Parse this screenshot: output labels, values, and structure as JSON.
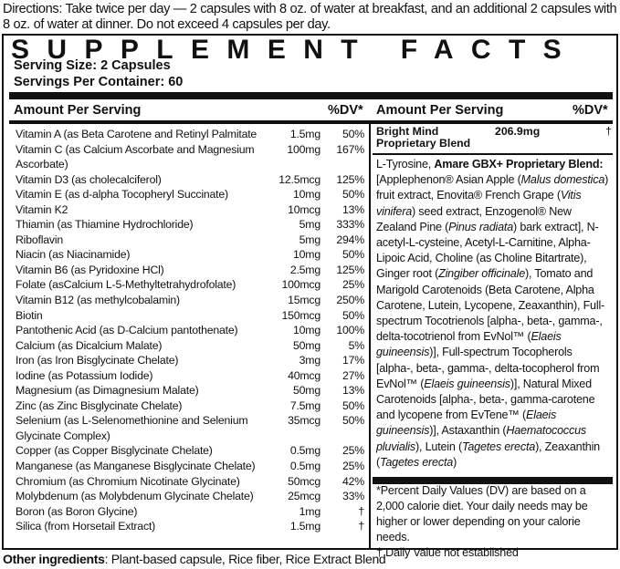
{
  "directions": "Directions: Take twice per day — 2 capsules with 8 oz. of water at breakfast, and an additional 2 capsules with 8 oz. of water at dinner. Do not exceed 4 capsules per day.",
  "title": "SUPPLEMENT FACTS",
  "serving_size": "Serving Size: 2 Capsules",
  "servings_per_container": "Servings Per Container: 60",
  "header": {
    "amount_label": "Amount Per Serving",
    "dv_label": "%DV*"
  },
  "nutrients": [
    {
      "name": "Vitamin A (as Beta Carotene and Retinyl Palmitate",
      "amount": "1.5mg",
      "dv": "50%"
    },
    {
      "name": "Vitamin C (as Calcium Ascorbate and Magnesium Ascorbate)",
      "amount": "100mg",
      "dv": "167%"
    },
    {
      "name": "Vitamin D3 (as cholecalciferol)",
      "amount": "12.5mcg",
      "dv": "125%"
    },
    {
      "name": "Vitamin E (as d-alpha Tocopheryl Succinate)",
      "amount": "10mg",
      "dv": "50%"
    },
    {
      "name": "Vitamin K2",
      "amount": "10mcg",
      "dv": "13%"
    },
    {
      "name": "Thiamin (as Thiamine Hydrochloride)",
      "amount": "5mg",
      "dv": "333%"
    },
    {
      "name": "Riboflavin",
      "amount": "5mg",
      "dv": "294%"
    },
    {
      "name": "Niacin (as Niacinamide)",
      "amount": "10mg",
      "dv": "50%"
    },
    {
      "name": "Vitamin B6 (as Pyridoxine HCl)",
      "amount": "2.5mg",
      "dv": "125%"
    },
    {
      "name": "Folate (asCalcium L-5-Methyltetrahydrofolate)",
      "amount": "100mcg",
      "dv": "25%"
    },
    {
      "name": "Vitamin B12 (as methylcobalamin)",
      "amount": "15mcg",
      "dv": "250%"
    },
    {
      "name": "Biotin",
      "amount": "150mcg",
      "dv": "50%"
    },
    {
      "name": "Pantothenic Acid (as D-Calcium pantothenate)",
      "amount": "10mg",
      "dv": "100%"
    },
    {
      "name": "Calcium (as Dicalcium Malate)",
      "amount": "50mg",
      "dv": "5%"
    },
    {
      "name": "Iron (as Iron Bisglycinate Chelate)",
      "amount": "3mg",
      "dv": "17%"
    },
    {
      "name": "Iodine (as Potassium Iodide)",
      "amount": "40mcg",
      "dv": "27%"
    },
    {
      "name": "Magnesium (as Dimagnesium Malate)",
      "amount": "50mg",
      "dv": "13%"
    },
    {
      "name": "Zinc (as Zinc Bisglycinate Chelate)",
      "amount": "7.5mg",
      "dv": "50%"
    },
    {
      "name": "Selenium (as L-Selenomethionine and Selenium Glycinate Complex)",
      "amount": "35mcg",
      "dv": "50%"
    },
    {
      "name": "Copper (as Copper Bisglycinate Chelate)",
      "amount": "0.5mg",
      "dv": "25%"
    },
    {
      "name": "Manganese (as Manganese Bisglycinate Chelate)",
      "amount": "0.5mg",
      "dv": "25%"
    },
    {
      "name": "Chromium (as Chromium Nicotinate Glycinate)",
      "amount": "50mcg",
      "dv": "42%"
    },
    {
      "name": "Molybdenum (as Molybdenum Glycinate Chelate)",
      "amount": "25mcg",
      "dv": "33%"
    },
    {
      "name": "Boron (as Boron Glycine)",
      "amount": "1mg",
      "dv": "†"
    },
    {
      "name": "Silica (from Horsetail Extract)",
      "amount": "1.5mg",
      "dv": "†"
    }
  ],
  "blend": {
    "name": "Bright Mind Proprietary Blend",
    "amount": "206.9mg",
    "dv": "†",
    "segments": [
      {
        "t": "L-Tyrosine, ",
        "s": "n"
      },
      {
        "t": "Amare GBX+ Proprietary Blend:",
        "s": "b"
      },
      {
        "t": " [Applephenon® Asian Apple (",
        "s": "n"
      },
      {
        "t": "Malus domestica",
        "s": "i"
      },
      {
        "t": ") fruit extract, Enovita® French Grape (",
        "s": "n"
      },
      {
        "t": "Vitis vinifera",
        "s": "i"
      },
      {
        "t": ") seed extract, Enzogenol® New Zealand Pine (",
        "s": "n"
      },
      {
        "t": "Pinus radiata",
        "s": "i"
      },
      {
        "t": ") bark extract], N-acetyl-L-cysteine, Acetyl-L-Carnitine, Alpha-Lipoic Acid, Choline (as Choline Bitartrate), Ginger root (",
        "s": "n"
      },
      {
        "t": "Zingiber officinale",
        "s": "i"
      },
      {
        "t": "), Tomato and Marigold Carotenoids (Beta Carotene, Alpha Carotene, Lutein, Lycopene, Zeaxanthin), Full-spectrum Tocotrienols [alpha-, beta-, gamma-, delta-tocotrienol from EvNol™ (",
        "s": "n"
      },
      {
        "t": "Elaeis guineensis",
        "s": "i"
      },
      {
        "t": ")], Full-spectrum Tocopherols [alpha-, beta-, gamma-, delta-tocopherol from EvNol™ (",
        "s": "n"
      },
      {
        "t": "Elaeis guineensis",
        "s": "i"
      },
      {
        "t": ")], Natural Mixed Carotenoids [alpha-, beta-, gamma-carotene and lycopene from EvTene™ (",
        "s": "n"
      },
      {
        "t": "Elaeis guineensis",
        "s": "i"
      },
      {
        "t": ")], Astaxanthin (",
        "s": "n"
      },
      {
        "t": "Haematococcus pluvialis",
        "s": "i"
      },
      {
        "t": "), Lutein (",
        "s": "n"
      },
      {
        "t": "Tagetes erecta",
        "s": "i"
      },
      {
        "t": "), Zeaxanthin (",
        "s": "n"
      },
      {
        "t": "Tagetes erecta",
        "s": "i"
      },
      {
        "t": ")",
        "s": "n"
      }
    ]
  },
  "footnotes": {
    "dv_note": "*Percent Daily Values (DV) are based on a 2,000 calorie diet. Your daily needs may be higher or lower depending on your calorie needs.",
    "dagger_note": "† Daily Value not established"
  },
  "other_ingredients": {
    "label": "Other ingredients",
    "text": ": Plant-based capsule, Rice fiber, Rice Extract Blend"
  }
}
